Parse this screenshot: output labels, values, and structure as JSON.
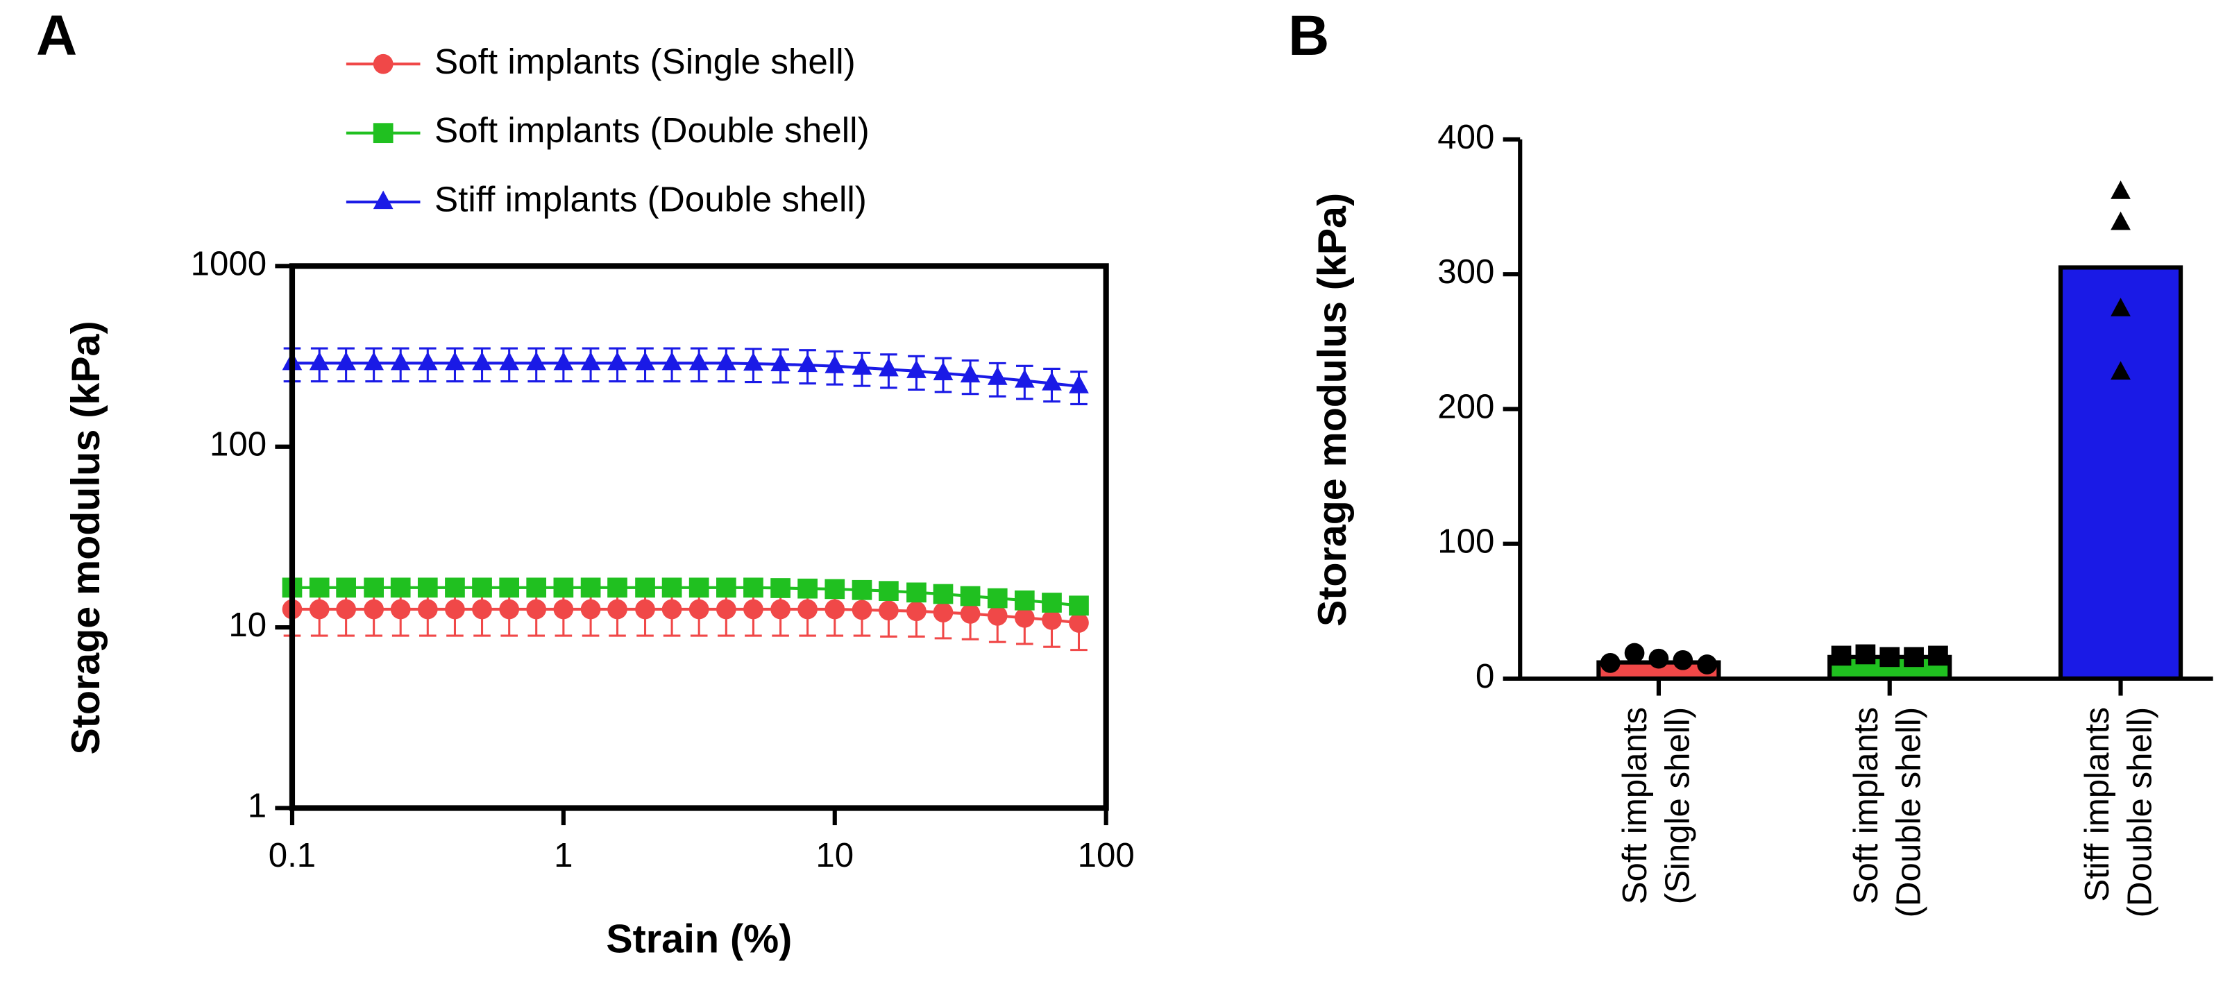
{
  "chart_data": [
    {
      "type": "line",
      "panel_label": "A",
      "xlabel": "Strain (%)",
      "ylabel": "Storage modulus (kPa)",
      "xlog": true,
      "ylog": true,
      "xlim": [
        0.1,
        100
      ],
      "xticks": [
        0.1,
        1,
        10,
        100
      ],
      "ylim": [
        1,
        1000
      ],
      "yticks": [
        1,
        10,
        100,
        1000
      ],
      "x": [
        0.1,
        0.126,
        0.158,
        0.2,
        0.251,
        0.316,
        0.398,
        0.501,
        0.631,
        0.794,
        1,
        1.26,
        1.58,
        2,
        2.51,
        3.16,
        3.98,
        5.01,
        6.31,
        7.94,
        10,
        12.6,
        15.8,
        20,
        25.1,
        31.6,
        39.8,
        50.1,
        63.1,
        79.4
      ],
      "markers": [
        "circle",
        "square",
        "triangle"
      ],
      "series": [
        {
          "name": "Soft implants (Single shell)",
          "color": "#f04848",
          "values": [
            12.6,
            12.6,
            12.6,
            12.6,
            12.6,
            12.6,
            12.6,
            12.6,
            12.6,
            12.6,
            12.6,
            12.6,
            12.6,
            12.6,
            12.6,
            12.6,
            12.6,
            12.6,
            12.6,
            12.6,
            12.6,
            12.5,
            12.4,
            12.3,
            12.1,
            11.9,
            11.6,
            11.3,
            11,
            10.6
          ],
          "errors": [
            3.6,
            3.6,
            3.6,
            3.6,
            3.6,
            3.6,
            3.6,
            3.6,
            3.6,
            3.6,
            3.6,
            3.6,
            3.6,
            3.6,
            3.6,
            3.6,
            3.6,
            3.6,
            3.6,
            3.6,
            3.6,
            3.5,
            3.5,
            3.4,
            3.4,
            3.3,
            3.3,
            3.2,
            3.2,
            3.1
          ]
        },
        {
          "name": "Soft implants (Double shell)",
          "color": "#20c020",
          "values": [
            16.6,
            16.6,
            16.6,
            16.6,
            16.6,
            16.6,
            16.6,
            16.6,
            16.6,
            16.6,
            16.6,
            16.6,
            16.6,
            16.6,
            16.6,
            16.6,
            16.6,
            16.6,
            16.5,
            16.4,
            16.3,
            16.1,
            15.9,
            15.6,
            15.3,
            14.9,
            14.5,
            14.1,
            13.7,
            13.2
          ],
          "errors": [
            1.5,
            1.5,
            1.5,
            1.5,
            1.5,
            1.5,
            1.5,
            1.5,
            1.5,
            1.5,
            1.5,
            1.5,
            1.5,
            1.5,
            1.5,
            1.5,
            1.5,
            1.5,
            1.5,
            1.5,
            1.5,
            1.5,
            1.5,
            1.4,
            1.4,
            1.4,
            1.3,
            1.3,
            1.3,
            1.2
          ]
        },
        {
          "name": "Stiff implants (Double shell)",
          "color": "#1a1ae6",
          "values": [
            290,
            290,
            290,
            290,
            290,
            290,
            290,
            290,
            290,
            290,
            290,
            290,
            290,
            290,
            290,
            290,
            290,
            288,
            286,
            283,
            279,
            274,
            268,
            262,
            255,
            248,
            240,
            232,
            224,
            216
          ],
          "errors": [
            60,
            60,
            60,
            60,
            60,
            60,
            60,
            60,
            60,
            60,
            60,
            60,
            60,
            60,
            60,
            60,
            60,
            60,
            59,
            59,
            58,
            57,
            56,
            55,
            54,
            52,
            50,
            48,
            46,
            44
          ]
        }
      ]
    },
    {
      "type": "bar",
      "panel_label": "B",
      "ylabel": "Storage modulus (kPa)",
      "categories": [
        [
          "Soft implants",
          "(Single shell)"
        ],
        [
          "Soft implants",
          "(Double shell)"
        ],
        [
          "Stiff implants",
          "(Double shell)"
        ]
      ],
      "values": [
        12,
        16,
        305
      ],
      "colors": [
        "#f04848",
        "#20c020",
        "#1a1ae6"
      ],
      "markers": [
        "circle",
        "square",
        "triangle"
      ],
      "points": [
        [
          11.6,
          19,
          14.8,
          13.7,
          10.5
        ],
        [
          17,
          18,
          16,
          16,
          17
        ],
        [
          361,
          338,
          274,
          227
        ]
      ],
      "ylim": [
        0,
        400
      ],
      "yticks": [
        0,
        100,
        200,
        300,
        400
      ]
    }
  ]
}
